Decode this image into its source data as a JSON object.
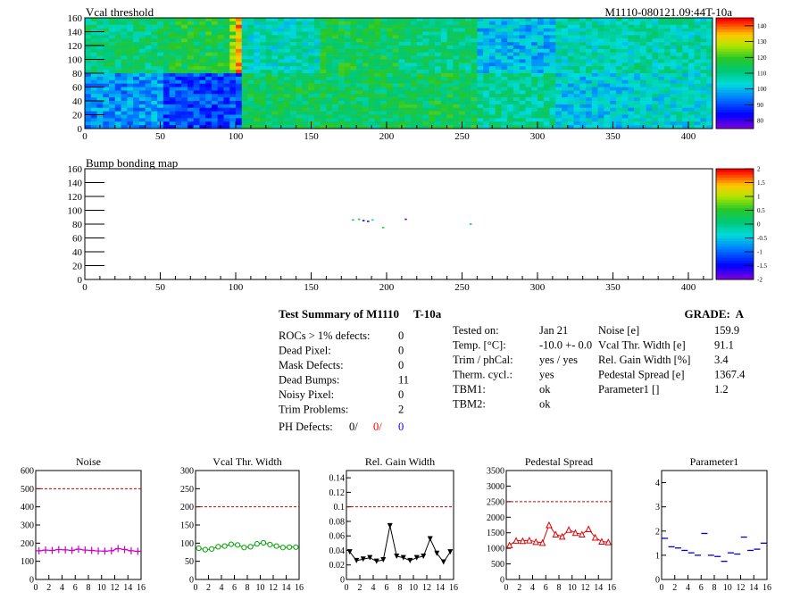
{
  "top_left_title": "Vcal threshold",
  "module_label": "M1110-080121.09:44T-10a",
  "bump_title": "Bump bonding map",
  "summary": {
    "header": "Test Summary of M1110",
    "header_temp": "T-10a",
    "grade": "GRADE:  A",
    "col1": [
      {
        "label": "ROCs > 1% defects:",
        "value": "0"
      },
      {
        "label": "Dead Pixel:",
        "value": "0"
      },
      {
        "label": "Mask Defects:",
        "value": "0"
      },
      {
        "label": "Dead Bumps:",
        "value": "11"
      },
      {
        "label": "Noisy Pixel:",
        "value": "0"
      },
      {
        "label": "Trim Problems:",
        "value": "2"
      }
    ],
    "ph_label": "PH Defects:",
    "ph_values": [
      "0/",
      "0/",
      "0"
    ],
    "ph_colors": [
      "#000000",
      "#ff0000",
      "#0000ff"
    ],
    "col2": [
      {
        "label": "Tested on:",
        "value": "Jan 21"
      },
      {
        "label": "Temp. [°C]:",
        "value": "-10.0 +- 0.0"
      },
      {
        "label": "Trim / phCal:",
        "value": "yes / yes"
      },
      {
        "label": "Therm. cycl.:",
        "value": "yes"
      },
      {
        "label": "TBM1:",
        "value": "ok"
      },
      {
        "label": "TBM2:",
        "value": "ok"
      }
    ],
    "col3": [
      {
        "label": "Noise [e]",
        "value": "159.9"
      },
      {
        "label": "Vcal Thr. Width [e]",
        "value": "91.1"
      },
      {
        "label": "Rel. Gain Width [%]",
        "value": "3.4"
      },
      {
        "label": "Pedestal Spread [e]",
        "value": "1367.4"
      },
      {
        "label": "Parameter1 []",
        "value": "1.2"
      }
    ]
  },
  "chart_data": [
    {
      "type": "heatmap",
      "title": "Vcal threshold",
      "xlim": [
        0,
        416
      ],
      "ylim": [
        0,
        160
      ],
      "x_ticks": [
        "0",
        "50",
        "100",
        "150",
        "200",
        "250",
        "300",
        "350",
        "400"
      ],
      "y_ticks": [
        "0",
        "20",
        "40",
        "60",
        "80",
        "100",
        "120",
        "140",
        "160"
      ],
      "z_range": [
        75,
        145
      ],
      "z_ticks": [
        "80",
        "90",
        "100",
        "110",
        "120",
        "130",
        "140"
      ],
      "roc_means_top": [
        112,
        116,
        106,
        115,
        111,
        100,
        107,
        107
      ],
      "roc_means_bottom": [
        96,
        90,
        114,
        114,
        115,
        109,
        102,
        104
      ]
    },
    {
      "type": "heatmap",
      "title": "Bump bonding map",
      "xlim": [
        0,
        416
      ],
      "ylim": [
        0,
        160
      ],
      "x_ticks": [
        "0",
        "50",
        "100",
        "150",
        "200",
        "250",
        "300",
        "350",
        "400"
      ],
      "y_ticks": [
        "0",
        "20",
        "40",
        "60",
        "80",
        "100",
        "120",
        "140",
        "160"
      ],
      "z_range": [
        -2,
        2
      ],
      "z_ticks": [
        "-2",
        "-1.5",
        "-1",
        "-0.5",
        "0",
        "0.5",
        "1",
        "1.5",
        "2"
      ],
      "points": [
        {
          "x": 177,
          "y": 87,
          "z": 0.2
        },
        {
          "x": 181,
          "y": 88,
          "z": 0.3
        },
        {
          "x": 184,
          "y": 86,
          "z": -1.5
        },
        {
          "x": 187,
          "y": 85,
          "z": -1.7
        },
        {
          "x": 190,
          "y": 87,
          "z": -0.5
        },
        {
          "x": 197,
          "y": 76,
          "z": 0.4
        },
        {
          "x": 212,
          "y": 88,
          "z": -1.9
        },
        {
          "x": 255,
          "y": 81,
          "z": 0.0
        }
      ]
    },
    {
      "type": "line",
      "title": "Noise",
      "xlim": [
        0,
        16
      ],
      "ylim": [
        0,
        600
      ],
      "x_ticks": [
        "0",
        "2",
        "4",
        "6",
        "8",
        "10",
        "12",
        "14",
        "16"
      ],
      "y_ticks": [
        "0",
        "100",
        "200",
        "300",
        "400",
        "500",
        "600"
      ],
      "color": "#cc00cc",
      "marker": "cross",
      "ref_line": 500,
      "x": [
        0.5,
        1.5,
        2.5,
        3.5,
        4.5,
        5.5,
        6.5,
        7.5,
        8.5,
        9.5,
        10.5,
        11.5,
        12.5,
        13.5,
        14.5,
        15.5
      ],
      "values": [
        158,
        162,
        160,
        165,
        163,
        160,
        167,
        162,
        160,
        157,
        156,
        158,
        170,
        165,
        158,
        155
      ]
    },
    {
      "type": "line",
      "title": "Vcal Thr. Width",
      "xlim": [
        0,
        16
      ],
      "ylim": [
        0,
        300
      ],
      "x_ticks": [
        "0",
        "2",
        "4",
        "6",
        "8",
        "10",
        "12",
        "14",
        "16"
      ],
      "y_ticks": [
        "0",
        "50",
        "100",
        "150",
        "200",
        "250",
        "300"
      ],
      "color": "#00a000",
      "marker": "circle",
      "ref_line": 200,
      "x": [
        0.5,
        1.5,
        2.5,
        3.5,
        4.5,
        5.5,
        6.5,
        7.5,
        8.5,
        9.5,
        10.5,
        11.5,
        12.5,
        13.5,
        14.5,
        15.5
      ],
      "values": [
        86,
        82,
        84,
        90,
        92,
        97,
        95,
        88,
        90,
        98,
        101,
        96,
        92,
        88,
        89,
        89
      ]
    },
    {
      "type": "line",
      "title": "Rel. Gain Width",
      "xlim": [
        0,
        16
      ],
      "ylim": [
        0,
        0.15
      ],
      "x_ticks": [
        "0",
        "2",
        "4",
        "6",
        "8",
        "10",
        "12",
        "14",
        "16"
      ],
      "y_ticks": [
        "0",
        "0.02",
        "0.04",
        "0.06",
        "0.08",
        "0.1",
        "0.12",
        "0.14"
      ],
      "color": "#000000",
      "marker": "triangle-down",
      "ref_line": 0.1,
      "x": [
        0.5,
        1.5,
        2.5,
        3.5,
        4.5,
        5.5,
        6.5,
        7.5,
        8.5,
        9.5,
        10.5,
        11.5,
        12.5,
        13.5,
        14.5,
        15.5
      ],
      "values": [
        0.038,
        0.026,
        0.028,
        0.03,
        0.025,
        0.027,
        0.074,
        0.032,
        0.03,
        0.026,
        0.03,
        0.032,
        0.056,
        0.036,
        0.024,
        0.038
      ]
    },
    {
      "type": "line",
      "title": "Pedestal Spread",
      "xlim": [
        0,
        16
      ],
      "ylim": [
        0,
        3500
      ],
      "x_ticks": [
        "0",
        "2",
        "4",
        "6",
        "8",
        "10",
        "12",
        "14",
        "16"
      ],
      "y_ticks": [
        "0",
        "500",
        "1000",
        "1500",
        "2000",
        "2500",
        "3000",
        "3500"
      ],
      "color": "#dd0000",
      "marker": "triangle-up",
      "ref_line": 2500,
      "x": [
        0.5,
        1.5,
        2.5,
        3.5,
        4.5,
        5.5,
        6.5,
        7.5,
        8.5,
        9.5,
        10.5,
        11.5,
        12.5,
        13.5,
        14.5,
        15.5
      ],
      "values": [
        1100,
        1250,
        1240,
        1260,
        1210,
        1180,
        1750,
        1450,
        1380,
        1600,
        1500,
        1450,
        1620,
        1350,
        1220,
        1200
      ]
    },
    {
      "type": "scatter",
      "title": "Parameter1",
      "xlim": [
        0,
        16
      ],
      "ylim": [
        0,
        4.5
      ],
      "x_ticks": [
        "0",
        "2",
        "4",
        "6",
        "8",
        "10",
        "12",
        "14",
        "16"
      ],
      "y_ticks": [
        "0",
        "1",
        "2",
        "3",
        "4"
      ],
      "color": "#0000cc",
      "marker": "hbar",
      "x": [
        0.5,
        1.5,
        2.5,
        3.5,
        4.5,
        5.5,
        6.5,
        7.5,
        8.5,
        9.5,
        10.5,
        11.5,
        12.5,
        13.5,
        14.5,
        15.5
      ],
      "values": [
        1.7,
        1.35,
        1.3,
        1.2,
        1.1,
        1.0,
        1.9,
        1.0,
        0.95,
        0.75,
        1.1,
        1.05,
        1.75,
        1.2,
        1.25,
        1.5
      ]
    }
  ]
}
